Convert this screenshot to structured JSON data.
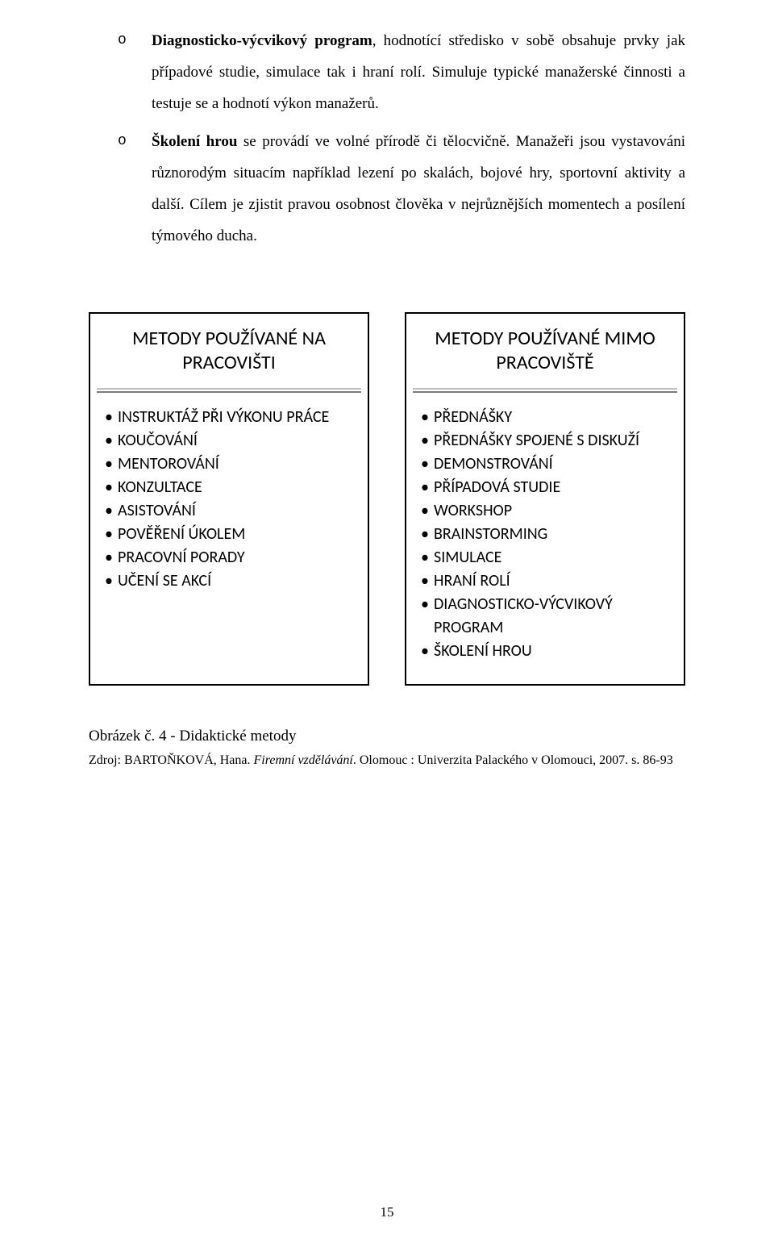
{
  "paragraphs": {
    "p1_term": "Diagnosticko-výcvikový program",
    "p1_rest": ", hodnotící středisko v sobě obsahuje prvky jak případové studie, simulace tak i hraní rolí. Simuluje typické manažerské činnosti a testuje se a hodnotí výkon manažerů.",
    "p2_term": "Školení hrou",
    "p2_rest": " se provádí ve volné přírodě či tělocvičně. Manažeři jsou vystavováni různorodým situacím například lezení po skalách, bojové hry, sportovní aktivity a další. Cílem je zjistit pravou osobnost člověka v nejrůznějších momentech a posílení týmového ducha."
  },
  "panels": {
    "left": {
      "title": "METODY POUŽÍVANÉ NA PRACOVIŠTI",
      "items": [
        "INSTRUKTÁŽ PŘI VÝKONU PRÁCE",
        "KOUČOVÁNÍ",
        "MENTOROVÁNÍ",
        "KONZULTACE",
        "ASISTOVÁNÍ",
        "POVĚŘENÍ ÚKOLEM",
        "PRACOVNÍ PORADY",
        "UČENÍ SE AKCÍ"
      ]
    },
    "right": {
      "title": "METODY POUŽÍVANÉ MIMO PRACOVIŠTĚ",
      "items": [
        "PŘEDNÁŠKY",
        "PŘEDNÁŠKY SPOJENÉ S DISKUŽÍ",
        "DEMONSTROVÁNÍ",
        "PŘÍPADOVÁ STUDIE",
        "WORKSHOP",
        "BRAINSTORMING",
        "SIMULACE",
        "HRANÍ ROLÍ",
        "DIAGNOSTICKO-VÝCVIKOVÝ PROGRAM",
        "ŠKOLENÍ HROU"
      ]
    }
  },
  "caption": "Obrázek č. 4 - Didaktické metody",
  "source": {
    "prefix": "Zdroj: BARTOŇKOVÁ, Hana. ",
    "italic": "Firemní vzdělávání",
    "suffix": ". Olomouc : Univerzita Palackého v Olomouci, 2007. s. 86-93"
  },
  "page_number": "15",
  "colors": {
    "text": "#000000",
    "background": "#ffffff",
    "panel_border": "#000000",
    "divider_top": "#bfbfbf",
    "divider_bottom": "#7a7a7a"
  },
  "typography": {
    "body_font": "Times New Roman",
    "panel_font": "Calibri",
    "body_size_pt": 14,
    "panel_title_size_pt": 18,
    "panel_item_size_pt": 15
  }
}
